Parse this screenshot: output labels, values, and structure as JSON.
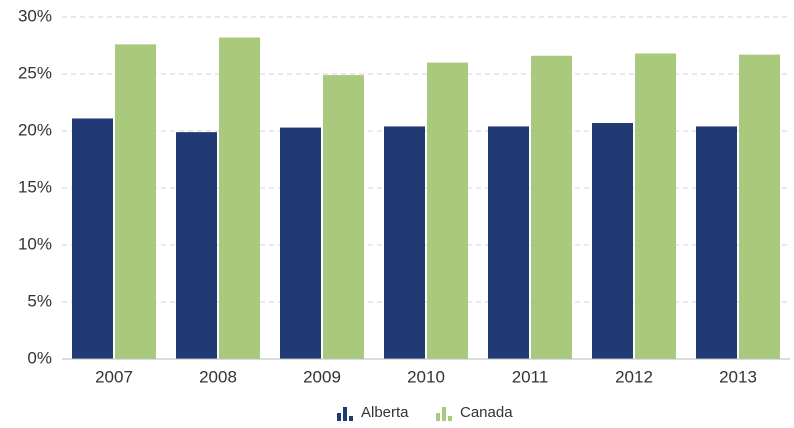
{
  "chart_data": {
    "type": "bar",
    "categories": [
      "2007",
      "2008",
      "2009",
      "2010",
      "2011",
      "2012",
      "2013"
    ],
    "series": [
      {
        "name": "Alberta",
        "color": "#213a73",
        "values": [
          21.1,
          19.9,
          20.3,
          20.4,
          20.4,
          20.7,
          20.4
        ]
      },
      {
        "name": "Canada",
        "color": "#a9c97c",
        "values": [
          27.6,
          28.2,
          24.9,
          26.0,
          26.6,
          26.8,
          26.7
        ]
      }
    ],
    "ylim": [
      0,
      30
    ],
    "yticks": [
      {
        "value": 0,
        "label": "0%"
      },
      {
        "value": 5,
        "label": "5%"
      },
      {
        "value": 10,
        "label": "10%"
      },
      {
        "value": 15,
        "label": "15%"
      },
      {
        "value": 20,
        "label": "20%"
      },
      {
        "value": 25,
        "label": "25%"
      },
      {
        "value": 30,
        "label": "30%"
      }
    ],
    "grid": true,
    "legend": "bottom"
  }
}
